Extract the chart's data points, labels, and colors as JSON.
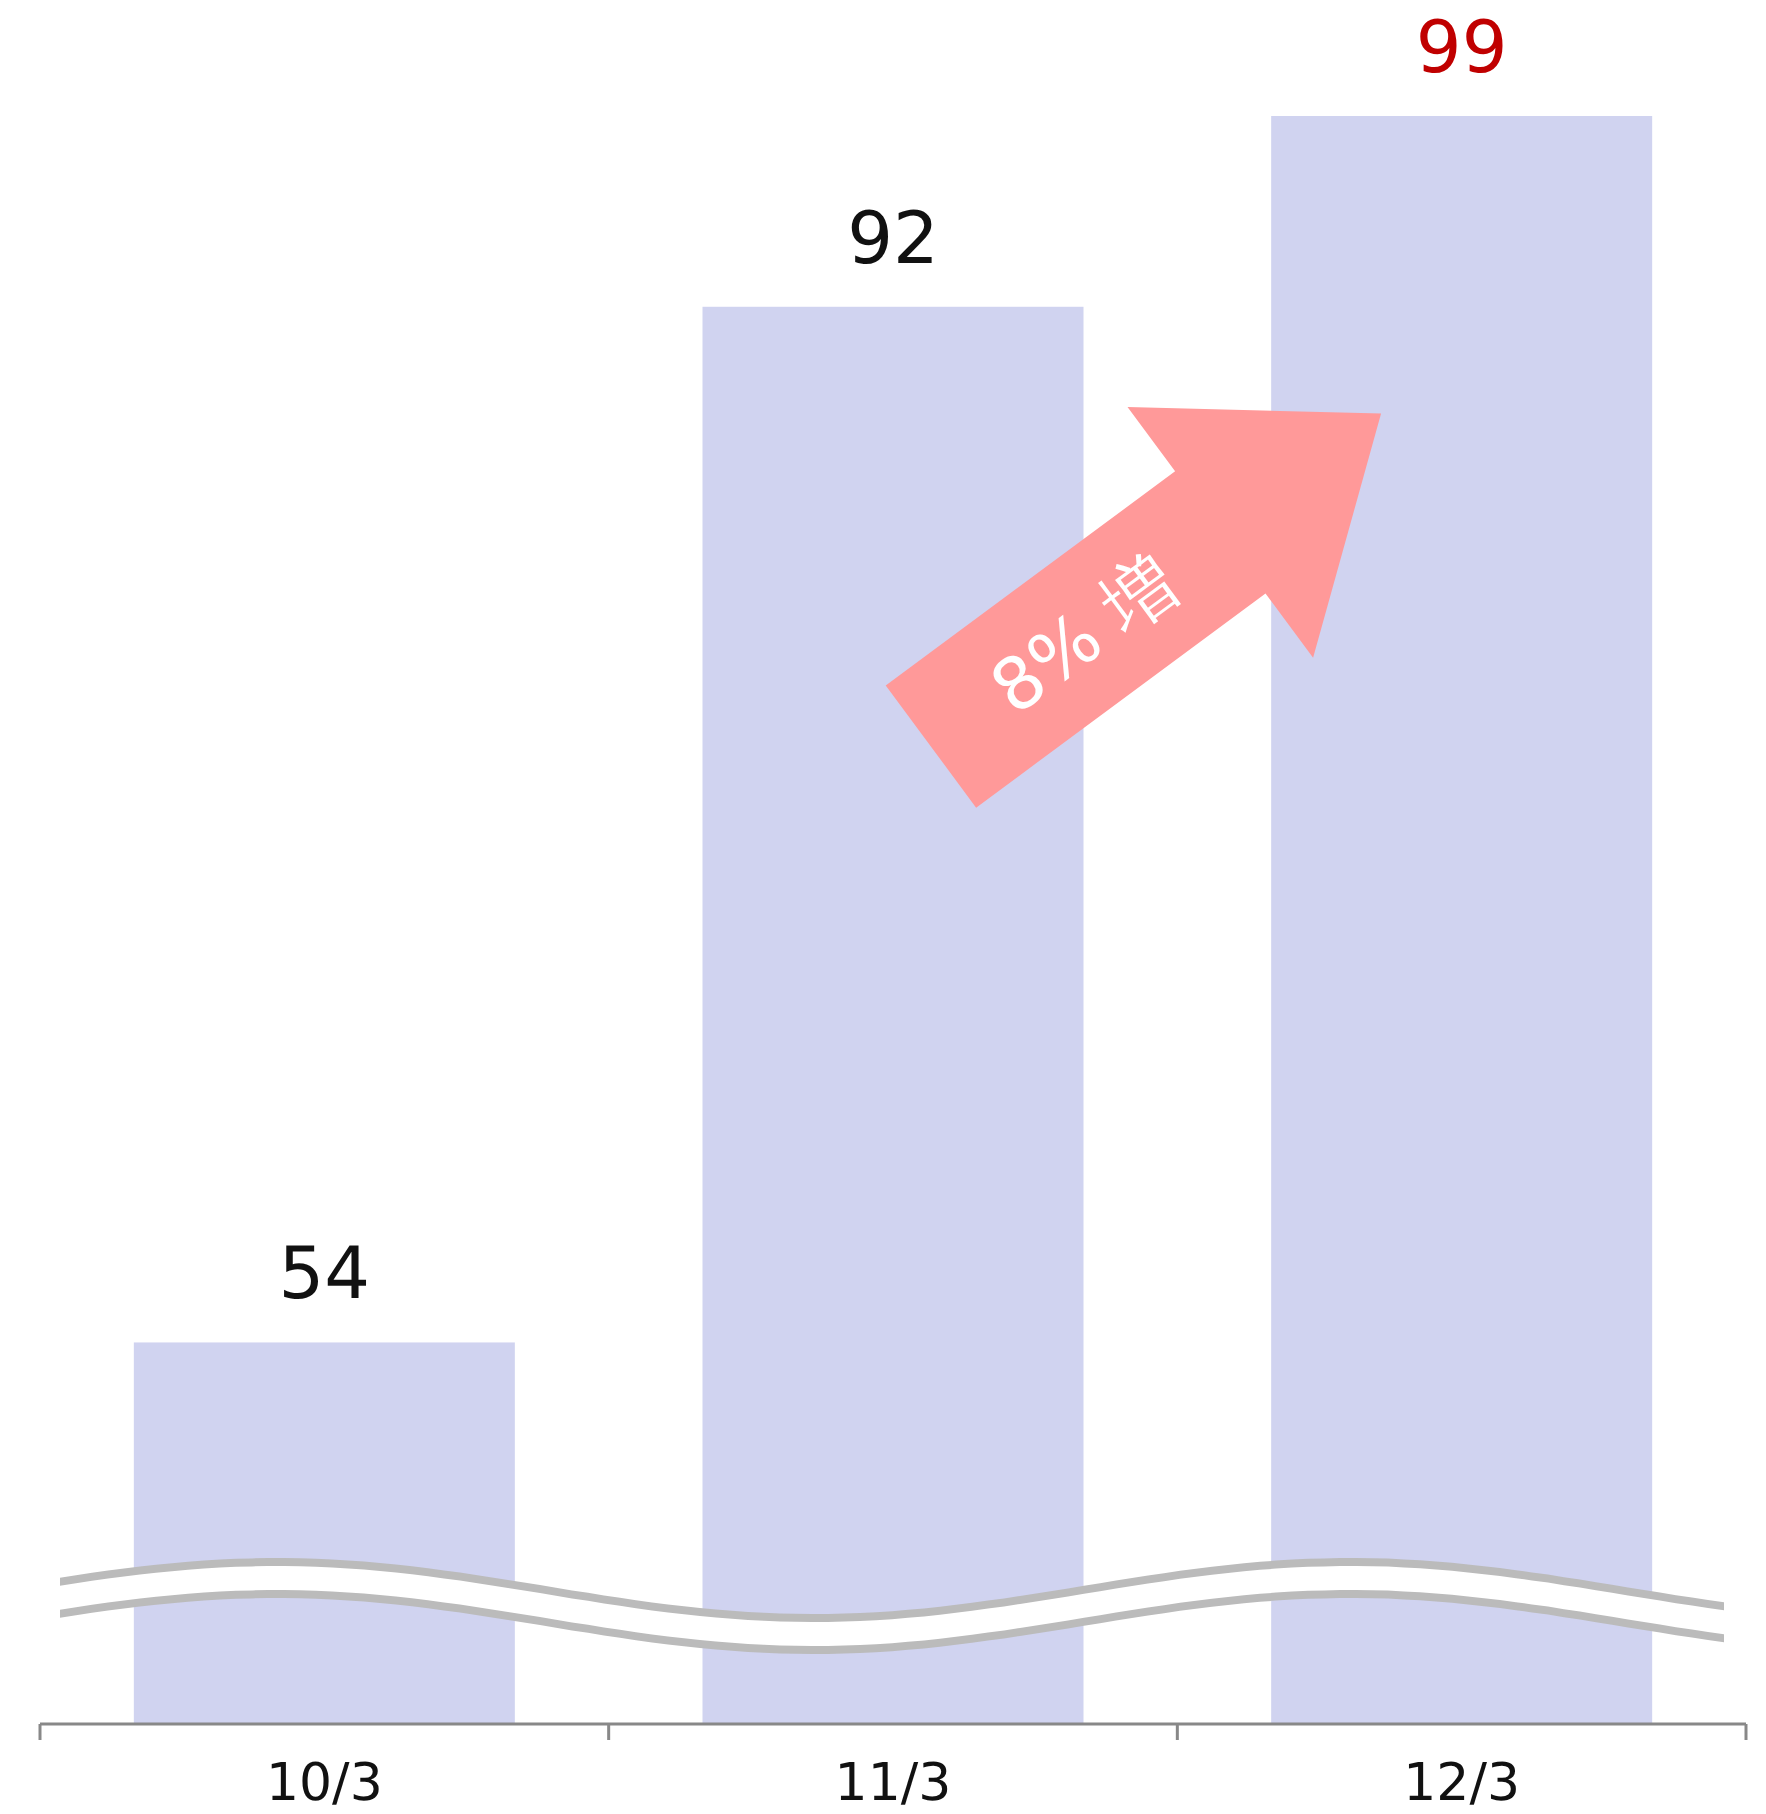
{
  "chart_data": {
    "type": "bar",
    "categories": [
      "10/3",
      "11/3",
      "12/3"
    ],
    "series": [
      {
        "color": "#d0d3f0",
        "values": [
          54,
          92,
          99
        ]
      }
    ],
    "ylim": [
      40,
      99
    ],
    "tick_labels": "x",
    "data_labels": true,
    "annotations": [
      "8% 増"
    ]
  }
}
